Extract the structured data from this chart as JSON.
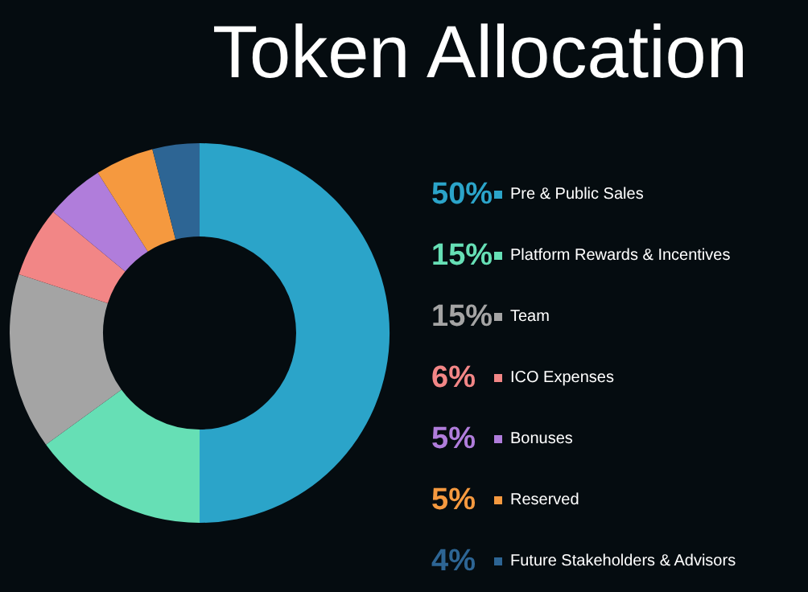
{
  "chart_data": {
    "type": "donut",
    "title": "Token Allocation",
    "categories": [
      "Pre & Public Sales",
      "Platform Rewards & Incentives",
      "Team",
      "ICO Expenses",
      "Bonuses",
      "Reserved",
      "Future Stakeholders & Advisors"
    ],
    "values": [
      50,
      15,
      15,
      6,
      5,
      5,
      4
    ],
    "colors": [
      "#2ba4c9",
      "#66dfb5",
      "#a4a4a4",
      "#f28686",
      "#b07ddb",
      "#f5993f",
      "#2d6594"
    ],
    "value_labels": [
      "50%",
      "15%",
      "15%",
      "6%",
      "5%",
      "5%",
      "4%"
    ],
    "legend": "right"
  }
}
